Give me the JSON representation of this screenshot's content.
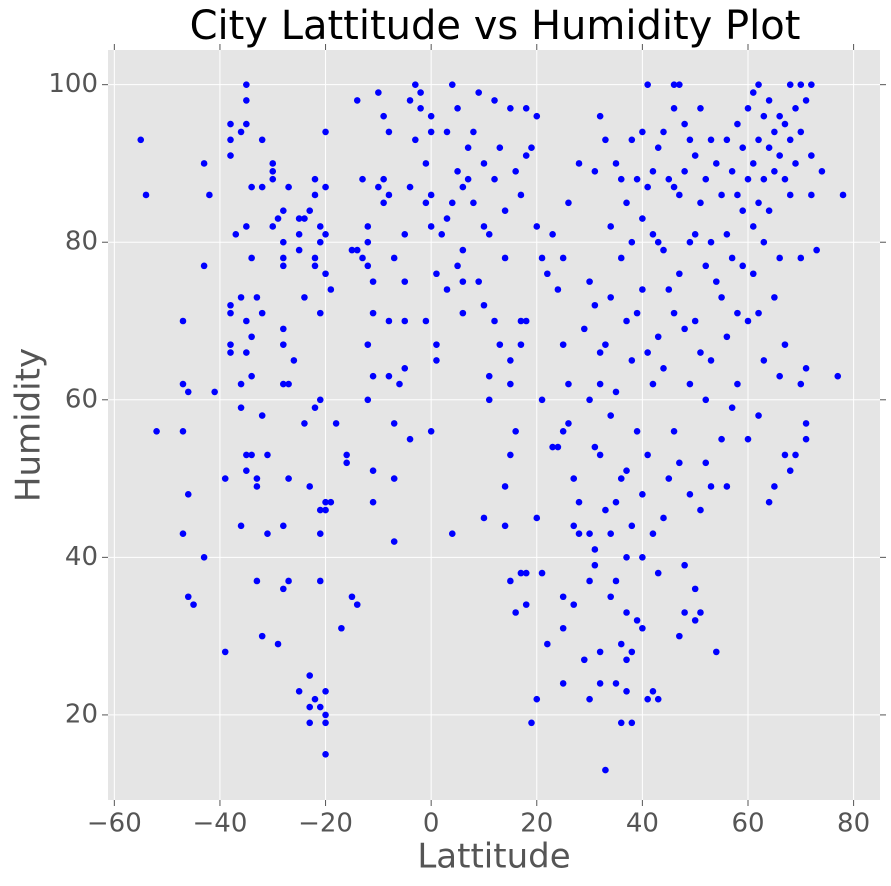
{
  "chart_data": {
    "type": "scatter",
    "title": "City Lattitude vs Humidity Plot",
    "x_label": "Lattitude",
    "y_label": "Humidity",
    "color": "#0000ff",
    "grid": true,
    "xlim": [
      -61.2,
      85
    ],
    "ylim": [
      9.2,
      104.4
    ],
    "xticks": [
      {
        "value": -60,
        "label": "−60"
      },
      {
        "value": -40,
        "label": "−40"
      },
      {
        "value": -20,
        "label": "−20"
      },
      0,
      20,
      40,
      60,
      80
    ],
    "yticks": [
      20,
      40,
      60,
      80,
      100
    ],
    "x": [
      -55,
      -54,
      -52,
      -47,
      -47,
      -46,
      -47,
      -46,
      -47,
      -46,
      -45,
      -43,
      -43,
      -42,
      -41,
      -43,
      -39,
      -39,
      -38,
      -38,
      -38,
      -38,
      -38,
      -37,
      -38,
      -38,
      -35,
      -35,
      -35,
      -36,
      -34,
      -35,
      -34,
      -36,
      -35,
      -34,
      -35,
      -36,
      -34,
      -36,
      -35,
      -34,
      -35,
      -36,
      -33,
      -32,
      -32,
      -33,
      -32,
      -32,
      -33,
      -33,
      -32,
      -31,
      -31,
      -30,
      -30,
      -30,
      -30,
      -29,
      -29,
      -28,
      -28,
      -28,
      -28,
      -28,
      -28,
      -28,
      -27,
      -28,
      -28,
      -27,
      -27,
      -26,
      -27,
      -25,
      -25,
      -25,
      -24,
      -24,
      -25,
      -24,
      -23,
      -23,
      -23,
      -23,
      -22,
      -22,
      -22,
      -22,
      -21,
      -21,
      -22,
      -21,
      -21,
      -21,
      -21,
      -21,
      -20,
      -20,
      -20,
      -20,
      -19,
      -20,
      -19,
      -20,
      -20,
      -20,
      -20,
      -20,
      -23,
      -22,
      -21,
      -18,
      -17,
      -16,
      -16,
      -15,
      -14,
      -15,
      -14,
      -13,
      -14,
      -13,
      -12,
      -12,
      -12,
      -11,
      -11,
      -12,
      -12,
      -11,
      -11,
      -11,
      -10,
      -10,
      -9,
      -9,
      -9,
      -8,
      -8,
      -7,
      -8,
      -8,
      -7,
      -7,
      -7,
      -6,
      -5,
      -5,
      -5,
      -5,
      -4,
      -4,
      -4,
      -3,
      -3,
      -2,
      -2,
      -1,
      -1,
      -1,
      0,
      0,
      0,
      0,
      1,
      1,
      1,
      0,
      2,
      3,
      3,
      3,
      4,
      4,
      4,
      5,
      5,
      5,
      6,
      6,
      6,
      6,
      7,
      7,
      8,
      8,
      9,
      9,
      10,
      10,
      10,
      10,
      11,
      11,
      11,
      12,
      12,
      12,
      13,
      13,
      14,
      14,
      14,
      14,
      15,
      15,
      15,
      15,
      15,
      16,
      16,
      16,
      17,
      17,
      17,
      17,
      18,
      18,
      18,
      18,
      18,
      19,
      19,
      20,
      20,
      20,
      20,
      21,
      21,
      21,
      22,
      22,
      23,
      23,
      24,
      24,
      25,
      25,
      25,
      25,
      25,
      25,
      26,
      26,
      26,
      27,
      27,
      27,
      28,
      28,
      28,
      29,
      29,
      30,
      30,
      30,
      30,
      30,
      31,
      31,
      31,
      31,
      31,
      32,
      32,
      32,
      32,
      32,
      32,
      33,
      33,
      33,
      33,
      34,
      34,
      34,
      34,
      34,
      35,
      35,
      35,
      35,
      35,
      36,
      36,
      36,
      36,
      36,
      37,
      37,
      37,
      37,
      37,
      37,
      37,
      38,
      38,
      38,
      38,
      38,
      38,
      39,
      39,
      39,
      39,
      40,
      40,
      40,
      40,
      40,
      40,
      41,
      41,
      41,
      41,
      41,
      42,
      42,
      42,
      42,
      42,
      43,
      43,
      43,
      43,
      43,
      44,
      44,
      44,
      44,
      45,
      45,
      45,
      46,
      46,
      46,
      46,
      46,
      47,
      47,
      47,
      47,
      47,
      48,
      48,
      48,
      48,
      48,
      49,
      49,
      49,
      49,
      50,
      50,
      50,
      50,
      50,
      51,
      51,
      51,
      51,
      51,
      52,
      52,
      52,
      52,
      53,
      53,
      53,
      53,
      54,
      54,
      54,
      55,
      55,
      55,
      56,
      56,
      56,
      56,
      57,
      57,
      57,
      58,
      58,
      58,
      58,
      59,
      59,
      59,
      60,
      60,
      60,
      60,
      61,
      61,
      61,
      61,
      62,
      62,
      62,
      62,
      62,
      63,
      63,
      63,
      63,
      64,
      64,
      64,
      64,
      65,
      65,
      65,
      65,
      66,
      66,
      66,
      66,
      67,
      67,
      67,
      67,
      68,
      68,
      68,
      68,
      69,
      69,
      69,
      70,
      70,
      70,
      70,
      71,
      71,
      71,
      71,
      72,
      72,
      72,
      73,
      74,
      77,
      78
    ],
    "values": [
      93,
      86,
      56,
      70,
      62,
      61,
      56,
      48,
      43,
      35,
      34,
      90,
      77,
      86,
      61,
      40,
      50,
      28,
      95,
      93,
      91,
      71,
      72,
      81,
      67,
      66,
      100,
      98,
      95,
      94,
      87,
      82,
      78,
      73,
      70,
      68,
      66,
      62,
      63,
      59,
      53,
      53,
      51,
      44,
      50,
      93,
      87,
      73,
      71,
      58,
      49,
      37,
      30,
      53,
      43,
      90,
      89,
      88,
      82,
      83,
      29,
      84,
      80,
      78,
      77,
      69,
      67,
      62,
      62,
      44,
      36,
      37,
      87,
      65,
      50,
      83,
      81,
      79,
      73,
      57,
      23,
      83,
      84,
      25,
      21,
      19,
      22,
      88,
      86,
      78,
      80,
      71,
      59,
      60,
      46,
      43,
      37,
      21,
      94,
      87,
      81,
      76,
      74,
      47,
      47,
      46,
      23,
      20,
      19,
      15,
      49,
      77,
      82,
      57,
      31,
      53,
      52,
      35,
      34,
      79,
      79,
      78,
      98,
      88,
      82,
      80,
      77,
      75,
      71,
      67,
      60,
      51,
      47,
      63,
      99,
      87,
      96,
      88,
      85,
      94,
      86,
      78,
      70,
      63,
      57,
      50,
      42,
      62,
      81,
      75,
      70,
      64,
      98,
      87,
      55,
      100,
      93,
      99,
      97,
      90,
      85,
      70,
      96,
      94,
      86,
      82,
      76,
      67,
      65,
      56,
      81,
      94,
      83,
      74,
      100,
      85,
      43,
      97,
      89,
      77,
      87,
      79,
      75,
      71,
      88,
      92,
      94,
      85,
      99,
      75,
      90,
      82,
      72,
      45,
      81,
      63,
      60,
      70,
      88,
      98,
      92,
      67,
      84,
      78,
      49,
      44,
      97,
      65,
      62,
      53,
      37,
      89,
      56,
      33,
      86,
      70,
      67,
      38,
      97,
      91,
      70,
      38,
      34,
      92,
      19,
      96,
      82,
      45,
      22,
      78,
      60,
      38,
      76,
      29,
      81,
      54,
      54,
      74,
      78,
      67,
      56,
      35,
      31,
      24,
      85,
      62,
      57,
      50,
      44,
      34,
      90,
      47,
      43,
      69,
      27,
      75,
      60,
      43,
      37,
      22,
      89,
      72,
      54,
      41,
      39,
      96,
      66,
      62,
      53,
      28,
      24,
      93,
      67,
      46,
      13,
      82,
      73,
      58,
      43,
      35,
      90,
      61,
      47,
      37,
      24,
      88,
      78,
      50,
      29,
      19,
      85,
      70,
      51,
      40,
      33,
      27,
      23,
      93,
      80,
      65,
      44,
      19,
      28,
      88,
      71,
      56,
      32,
      94,
      83,
      74,
      48,
      40,
      31,
      100,
      87,
      66,
      53,
      22,
      89,
      81,
      62,
      43,
      23,
      92,
      80,
      68,
      38,
      22,
      94,
      79,
      64,
      45,
      88,
      74,
      50,
      100,
      97,
      87,
      71,
      56,
      100,
      86,
      76,
      52,
      30,
      95,
      89,
      69,
      39,
      33,
      93,
      80,
      62,
      48,
      91,
      81,
      70,
      36,
      32,
      97,
      85,
      66,
      46,
      33,
      88,
      77,
      60,
      52,
      93,
      80,
      65,
      49,
      90,
      75,
      28,
      86,
      73,
      55,
      93,
      81,
      68,
      49,
      89,
      78,
      59,
      95,
      86,
      71,
      62,
      92,
      84,
      77,
      97,
      88,
      70,
      55,
      99,
      90,
      82,
      76,
      100,
      93,
      85,
      71,
      58,
      96,
      88,
      80,
      65,
      98,
      92,
      84,
      47,
      94,
      89,
      73,
      49,
      96,
      91,
      78,
      63,
      95,
      88,
      67,
      53,
      100,
      93,
      86,
      51,
      97,
      90,
      53,
      100,
      94,
      78,
      62,
      98,
      64,
      57,
      55,
      100,
      91,
      86,
      79,
      89,
      63,
      86
    ]
  }
}
